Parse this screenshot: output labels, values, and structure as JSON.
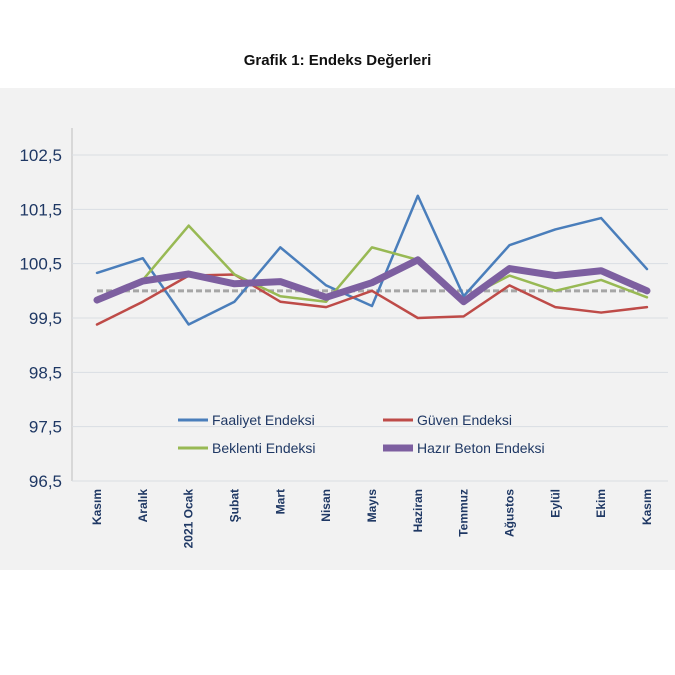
{
  "chart_data": {
    "type": "line",
    "title": "Grafik 1: Endeks Değerleri",
    "categories": [
      "Kasım",
      "Aralık",
      "2021 Ocak",
      "Şubat",
      "Mart",
      "Nisan",
      "Mayıs",
      "Haziran",
      "Temmuz",
      "Ağustos",
      "Eylül",
      "Ekim",
      "Kasım"
    ],
    "ylim": [
      96.5,
      102.5
    ],
    "yticks": [
      "96,5",
      "97,5",
      "98,5",
      "99,5",
      "100,5",
      "101,5",
      "102,5"
    ],
    "ytick_values": [
      96.5,
      97.5,
      98.5,
      99.5,
      100.5,
      101.5,
      102.5
    ],
    "grid": true,
    "legend_placement": "bottom-center",
    "reference_line": {
      "value": 100,
      "color": "#a6a6a6",
      "style": "dashed"
    },
    "series": [
      {
        "name": "Faaliyet Endeksi",
        "color": "#4a7ebb",
        "values": [
          100.33,
          100.6,
          99.38,
          99.8,
          100.8,
          100.1,
          99.72,
          101.75,
          99.9,
          100.84,
          101.13,
          101.34,
          100.4
        ]
      },
      {
        "name": "Güven Endeksi",
        "color": "#be4b48",
        "values": [
          99.38,
          99.8,
          100.28,
          100.3,
          99.8,
          99.7,
          100.0,
          99.5,
          99.53,
          100.1,
          99.7,
          99.6,
          99.7
        ]
      },
      {
        "name": "Beklenti Endeksi",
        "color": "#98b954",
        "values": [
          99.85,
          100.2,
          101.2,
          100.3,
          99.9,
          99.8,
          100.8,
          100.57,
          99.85,
          100.28,
          100.0,
          100.2,
          99.88
        ]
      },
      {
        "name": "Hazır Beton Endeksi",
        "color": "#7d5fa0",
        "values": [
          99.83,
          100.18,
          100.31,
          100.13,
          100.17,
          99.88,
          100.15,
          100.57,
          99.8,
          100.41,
          100.28,
          100.37,
          100.0
        ]
      }
    ]
  }
}
